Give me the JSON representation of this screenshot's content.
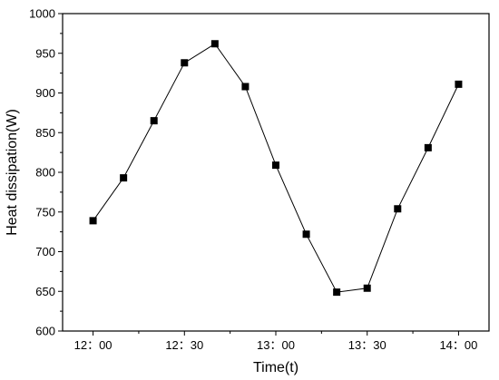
{
  "chart_data": {
    "type": "line",
    "title": "",
    "xlabel": "Time(t)",
    "ylabel": "Heat dissipation(W)",
    "x_tick_labels": [
      "12：00",
      "12：30",
      "13：00",
      "13：30",
      "14：00"
    ],
    "x_tick_values": [
      "12:00",
      "12:30",
      "13:00",
      "13:30",
      "14:00"
    ],
    "y_tick_labels": [
      "600",
      "650",
      "700",
      "750",
      "800",
      "850",
      "900",
      "950",
      "1000"
    ],
    "ylim": [
      600,
      1000
    ],
    "xlim": [
      "11:50",
      "14:10"
    ],
    "grid": false,
    "marker": "square",
    "series": [
      {
        "x": [
          "12:00",
          "12:10",
          "12:20",
          "12:30",
          "12:40",
          "12:50",
          "13:00",
          "13:10",
          "13:20",
          "13:30",
          "13:40",
          "13:50",
          "14:00"
        ],
        "values": [
          739,
          793,
          865,
          938,
          962,
          908,
          809,
          722,
          649,
          654,
          754,
          831,
          911
        ]
      }
    ]
  }
}
